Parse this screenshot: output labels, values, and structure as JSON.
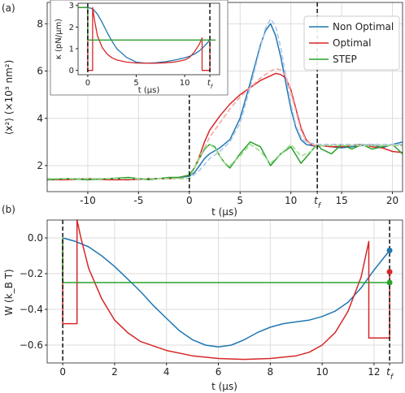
{
  "panels": {
    "a": "(a)",
    "b": "(b)"
  },
  "chart_data": [
    {
      "id": "a",
      "type": "line",
      "xlabel": "t (μs)",
      "ylabel": "⟨x²⟩ (×10³ nm²)",
      "xlim": [
        -14,
        21
      ],
      "ylim": [
        0.9,
        8.9
      ],
      "xticks": [
        -10,
        -5,
        0,
        5,
        10,
        15,
        20
      ],
      "xtick_labels": [
        "-10",
        "-5",
        "0",
        "5",
        "10",
        "15",
        "20"
      ],
      "yticks": [
        2,
        4,
        6,
        8
      ],
      "ytick_labels": [
        "2",
        "4",
        "6",
        "8"
      ],
      "extra_tick": {
        "x": 12.6,
        "label": "t_f"
      },
      "vlines": [
        0,
        12.6
      ],
      "grid": true,
      "legend_position": "top-right",
      "legend": [
        "Non Optimal",
        "Optimal",
        "STEP"
      ],
      "colors": {
        "non_optimal": "#1f77b4",
        "optimal": "#d62728",
        "step": "#2ca02c",
        "non_optimal_theory": "#aec7e8",
        "optimal_theory": "#f4a6a6",
        "step_theory": "#98df8a"
      },
      "series": [
        {
          "name": "Non Optimal",
          "color": "#1f77b4",
          "x": [
            -14,
            -12,
            -10,
            -8,
            -6,
            -4,
            -2,
            -1,
            0,
            0.5,
            1,
            1.5,
            2,
            3,
            4,
            5,
            6,
            7,
            7.5,
            8,
            8.5,
            9,
            9.5,
            10,
            10.5,
            11,
            11.5,
            12,
            12.6,
            13,
            14,
            15,
            16,
            17,
            18,
            19,
            20,
            21
          ],
          "y": [
            1.4,
            1.45,
            1.4,
            1.45,
            1.4,
            1.45,
            1.45,
            1.5,
            1.55,
            1.7,
            2.0,
            2.3,
            2.5,
            2.75,
            3.1,
            4.0,
            5.5,
            7.1,
            7.7,
            8.0,
            7.5,
            6.6,
            5.5,
            4.4,
            3.6,
            3.1,
            2.9,
            2.85,
            2.8,
            2.85,
            2.8,
            2.75,
            2.8,
            2.85,
            2.9,
            2.75,
            2.9,
            3.0
          ]
        },
        {
          "name": "Optimal",
          "color": "#d62728",
          "x": [
            -14,
            -12,
            -10,
            -8,
            -6,
            -4,
            -2,
            -1,
            0,
            0.5,
            1,
            1.5,
            2,
            3,
            4,
            5,
            6,
            7,
            8,
            8.5,
            9,
            9.5,
            10,
            10.5,
            11,
            11.5,
            12,
            12.6,
            13,
            14,
            15,
            16,
            17,
            18,
            19,
            20,
            21
          ],
          "y": [
            1.4,
            1.4,
            1.45,
            1.4,
            1.4,
            1.45,
            1.45,
            1.5,
            1.6,
            1.9,
            2.4,
            3.0,
            3.5,
            4.1,
            4.6,
            5.0,
            5.3,
            5.6,
            5.8,
            5.9,
            5.85,
            5.7,
            5.2,
            4.4,
            3.6,
            3.1,
            2.9,
            2.8,
            2.85,
            2.8,
            2.8,
            2.85,
            2.9,
            2.8,
            2.75,
            2.6,
            2.55
          ]
        },
        {
          "name": "STEP",
          "color": "#2ca02c",
          "x": [
            -14,
            -12,
            -10,
            -8,
            -6,
            -4,
            -2,
            -1,
            0,
            0.5,
            1,
            1.5,
            2,
            2.5,
            3,
            3.5,
            4,
            5,
            6,
            7,
            8,
            9,
            10,
            11,
            12,
            12.6,
            13,
            14,
            15,
            16,
            17,
            18,
            19,
            20,
            21
          ],
          "y": [
            1.4,
            1.45,
            1.4,
            1.45,
            1.5,
            1.4,
            1.5,
            1.5,
            1.6,
            1.9,
            2.3,
            2.7,
            2.9,
            2.8,
            2.4,
            2.1,
            1.9,
            2.5,
            3.0,
            2.8,
            2.0,
            2.5,
            2.8,
            2.1,
            2.6,
            2.9,
            2.7,
            2.5,
            2.9,
            2.7,
            2.9,
            2.7,
            2.8,
            2.9,
            2.5
          ]
        },
        {
          "theory": true,
          "color": "#aec7e8",
          "x": [
            -14,
            0,
            1,
            2,
            3,
            4,
            5,
            6,
            7,
            7.5,
            8,
            8.5,
            9,
            9.5,
            10,
            10.5,
            11,
            11.5,
            12,
            12.6,
            21
          ],
          "y": [
            1.45,
            1.45,
            1.8,
            2.3,
            2.6,
            3.0,
            3.8,
            5.3,
            7.0,
            7.8,
            8.2,
            7.9,
            7.0,
            5.8,
            4.6,
            3.7,
            3.2,
            3.0,
            2.95,
            2.9,
            2.9
          ]
        },
        {
          "theory": true,
          "color": "#f4a6a6",
          "x": [
            -14,
            0,
            1,
            2,
            3,
            4,
            5,
            6,
            7,
            8,
            8.5,
            9,
            9.5,
            10,
            10.5,
            11,
            11.5,
            12,
            12.6,
            21
          ],
          "y": [
            1.45,
            1.45,
            2.3,
            3.2,
            3.8,
            4.4,
            4.9,
            5.3,
            5.7,
            6.0,
            6.1,
            6.05,
            5.8,
            5.1,
            4.3,
            3.5,
            3.05,
            2.9,
            2.85,
            2.85
          ]
        },
        {
          "theory": true,
          "color": "#98df8a",
          "x": [
            -14,
            0,
            0.5,
            1,
            1.5,
            2,
            2.5,
            3,
            3.5,
            4,
            5,
            6,
            7,
            8,
            9,
            10,
            11,
            12,
            12.6,
            21
          ],
          "y": [
            1.45,
            1.45,
            1.9,
            2.4,
            2.75,
            2.9,
            2.75,
            2.4,
            2.1,
            2.0,
            2.4,
            2.9,
            2.6,
            2.1,
            2.5,
            2.9,
            2.4,
            2.6,
            2.85,
            2.85
          ]
        }
      ]
    },
    {
      "id": "a-inset",
      "type": "line",
      "xlabel": "t (μs)",
      "ylabel": "κ (pN/μm)",
      "xlim": [
        -1,
        13.6
      ],
      "ylim": [
        -0.2,
        3.1
      ],
      "xticks": [
        0,
        5,
        10
      ],
      "xtick_labels": [
        "0",
        "5",
        "10"
      ],
      "yticks": [
        0,
        1,
        2,
        3
      ],
      "ytick_labels": [
        "0",
        "1",
        "2",
        "3"
      ],
      "extra_tick": {
        "x": 12.6,
        "label": "t_f"
      },
      "vlines": [
        0,
        12.6
      ],
      "series": [
        {
          "name": "Non Optimal",
          "color": "#1f77b4",
          "x": [
            -1,
            0,
            0.5,
            1,
            1.5,
            2,
            2.5,
            3,
            4,
            5,
            6,
            7,
            8,
            9,
            10,
            10.5,
            11,
            11.5,
            12,
            12.6
          ],
          "y": [
            2.9,
            2.9,
            2.85,
            2.6,
            2.2,
            1.75,
            1.35,
            1.0,
            0.6,
            0.38,
            0.33,
            0.35,
            0.4,
            0.48,
            0.58,
            0.65,
            0.75,
            0.9,
            1.1,
            1.4
          ]
        },
        {
          "name": "Optimal",
          "color": "#d62728",
          "x": [
            -1,
            0,
            0,
            0.5,
            0.5,
            0.7,
            1,
            1.5,
            2,
            2.5,
            3,
            4,
            5,
            6,
            7,
            8,
            9,
            10,
            10.5,
            11,
            11.5,
            11.8,
            11.8,
            12.6,
            12.6
          ],
          "y": [
            2.9,
            2.9,
            0.0,
            0.0,
            2.9,
            2.3,
            1.6,
            1.05,
            0.75,
            0.58,
            0.48,
            0.38,
            0.34,
            0.33,
            0.33,
            0.35,
            0.39,
            0.48,
            0.6,
            0.85,
            1.2,
            1.5,
            0.0,
            0.0,
            1.4
          ]
        },
        {
          "name": "STEP",
          "color": "#2ca02c",
          "x": [
            -1,
            0,
            0,
            13.2
          ],
          "y": [
            2.9,
            2.9,
            1.4,
            1.4
          ]
        }
      ]
    },
    {
      "id": "b",
      "type": "line",
      "xlabel": "t (μs)",
      "ylabel": "W (k_B T)",
      "xlim": [
        -0.6,
        13.1
      ],
      "ylim": [
        -0.7,
        0.1
      ],
      "xticks": [
        0,
        2,
        4,
        6,
        8,
        10,
        12
      ],
      "xtick_labels": [
        "0",
        "2",
        "4",
        "6",
        "8",
        "10",
        "12"
      ],
      "yticks": [
        0.0,
        -0.2,
        -0.4,
        -0.6
      ],
      "ytick_labels": [
        "0.0",
        "−0.2",
        "−0.4",
        "−0.6"
      ],
      "extra_tick": {
        "x": 12.6,
        "label": "t_f"
      },
      "vlines": [
        0,
        12.6
      ],
      "grid": true,
      "series": [
        {
          "name": "Non Optimal",
          "color": "#1f77b4",
          "x": [
            0,
            0.5,
            1,
            1.5,
            2,
            2.5,
            3,
            3.5,
            4,
            4.5,
            5,
            5.5,
            6,
            6.5,
            7,
            7.5,
            8,
            8.5,
            9,
            9.5,
            10,
            10.5,
            11,
            11.5,
            12,
            12.6
          ],
          "y": [
            0.0,
            -0.02,
            -0.05,
            -0.1,
            -0.16,
            -0.23,
            -0.3,
            -0.38,
            -0.45,
            -0.52,
            -0.57,
            -0.6,
            -0.61,
            -0.6,
            -0.57,
            -0.53,
            -0.5,
            -0.48,
            -0.47,
            -0.46,
            -0.44,
            -0.41,
            -0.36,
            -0.28,
            -0.18,
            -0.07
          ]
        },
        {
          "name": "Optimal",
          "color": "#d62728",
          "x": [
            0,
            0,
            0.55,
            0.55,
            0.7,
            1,
            1.5,
            2,
            2.5,
            3,
            4,
            5,
            6,
            7,
            8,
            9,
            9.5,
            10,
            10.5,
            11,
            11.5,
            11.8,
            11.8,
            12.6,
            12.6
          ],
          "y": [
            0.0,
            -0.48,
            -0.48,
            0.1,
            0.0,
            -0.17,
            -0.34,
            -0.46,
            -0.53,
            -0.58,
            -0.63,
            -0.66,
            -0.675,
            -0.68,
            -0.675,
            -0.66,
            -0.64,
            -0.6,
            -0.53,
            -0.41,
            -0.22,
            -0.02,
            -0.56,
            -0.56,
            -0.19
          ]
        },
        {
          "name": "STEP",
          "color": "#2ca02c",
          "x": [
            0,
            0,
            12.6
          ],
          "y": [
            0.0,
            -0.25,
            -0.25
          ]
        }
      ],
      "endpoints": [
        {
          "x": 12.6,
          "y": -0.07,
          "color": "#1f77b4"
        },
        {
          "x": 12.6,
          "y": -0.19,
          "color": "#d62728"
        },
        {
          "x": 12.6,
          "y": -0.25,
          "color": "#2ca02c"
        }
      ]
    }
  ]
}
